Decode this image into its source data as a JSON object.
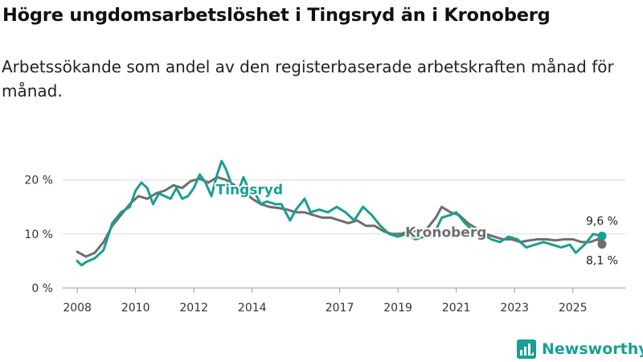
{
  "title": "Högre ungdomsarbetslöshet i Tingsryd än i Kronoberg",
  "subtitle": "Arbetssökande som andel av den registerbaserade arbetskraften månad för månad.",
  "brand": {
    "name": "Newsworthy",
    "color": "#1a9e95"
  },
  "chart_data": {
    "type": "line",
    "ylabel": "",
    "xlabel": "",
    "ylim": [
      0,
      25
    ],
    "xlim": [
      2007.5,
      2026.8
    ],
    "yticks": [
      {
        "value": 0,
        "label": "0 %"
      },
      {
        "value": 10,
        "label": "10 %"
      },
      {
        "value": 20,
        "label": "20 %"
      }
    ],
    "xticks": [
      {
        "value": 2008,
        "label": "2008"
      },
      {
        "value": 2010,
        "label": "2010"
      },
      {
        "value": 2012,
        "label": "2012"
      },
      {
        "value": 2014,
        "label": "2014"
      },
      {
        "value": 2017,
        "label": "2017"
      },
      {
        "value": 2019,
        "label": "2019"
      },
      {
        "value": 2021,
        "label": "2021"
      },
      {
        "value": 2023,
        "label": "2023"
      },
      {
        "value": 2025,
        "label": "2025"
      }
    ],
    "grid": true,
    "series": [
      {
        "name": "Kronoberg",
        "color": "#6e6e6e",
        "end_label": "8,1 %",
        "label_at": 2019.8,
        "points": [
          [
            2008.0,
            6.7
          ],
          [
            2008.3,
            5.8
          ],
          [
            2008.6,
            6.5
          ],
          [
            2008.9,
            8.5
          ],
          [
            2009.2,
            11.5
          ],
          [
            2009.5,
            13.5
          ],
          [
            2009.8,
            15.5
          ],
          [
            2010.1,
            17.0
          ],
          [
            2010.4,
            16.5
          ],
          [
            2010.7,
            17.5
          ],
          [
            2011.0,
            18.0
          ],
          [
            2011.3,
            19.0
          ],
          [
            2011.6,
            18.5
          ],
          [
            2011.9,
            19.8
          ],
          [
            2012.2,
            20.2
          ],
          [
            2012.5,
            19.5
          ],
          [
            2012.8,
            20.5
          ],
          [
            2013.1,
            20.0
          ],
          [
            2013.4,
            19.0
          ],
          [
            2013.7,
            18.0
          ],
          [
            2014.0,
            16.5
          ],
          [
            2014.3,
            15.5
          ],
          [
            2014.6,
            15.0
          ],
          [
            2014.9,
            14.8
          ],
          [
            2015.2,
            14.5
          ],
          [
            2015.5,
            14.0
          ],
          [
            2015.8,
            14.0
          ],
          [
            2016.1,
            13.5
          ],
          [
            2016.4,
            13.0
          ],
          [
            2016.7,
            13.0
          ],
          [
            2017.0,
            12.5
          ],
          [
            2017.3,
            12.0
          ],
          [
            2017.6,
            12.5
          ],
          [
            2017.9,
            11.5
          ],
          [
            2018.2,
            11.5
          ],
          [
            2018.5,
            10.5
          ],
          [
            2018.8,
            10.0
          ],
          [
            2019.1,
            10.0
          ],
          [
            2019.4,
            10.5
          ],
          [
            2019.7,
            10.5
          ],
          [
            2020.0,
            11.0
          ],
          [
            2020.3,
            13.0
          ],
          [
            2020.5,
            15.0
          ],
          [
            2020.8,
            14.0
          ],
          [
            2021.1,
            13.5
          ],
          [
            2021.4,
            12.0
          ],
          [
            2021.7,
            11.0
          ],
          [
            2022.0,
            10.0
          ],
          [
            2022.3,
            9.5
          ],
          [
            2022.6,
            9.0
          ],
          [
            2022.9,
            9.0
          ],
          [
            2023.2,
            8.5
          ],
          [
            2023.5,
            8.8
          ],
          [
            2023.8,
            9.0
          ],
          [
            2024.1,
            9.0
          ],
          [
            2024.4,
            8.8
          ],
          [
            2024.7,
            9.0
          ],
          [
            2025.0,
            9.0
          ],
          [
            2025.3,
            8.5
          ],
          [
            2025.6,
            8.5
          ],
          [
            2025.85,
            9.0
          ],
          [
            2026.0,
            8.1
          ]
        ]
      },
      {
        "name": "Tingsryd",
        "color": "#1a9e95",
        "end_label": "9,6 %",
        "label_at": 2013.5,
        "points": [
          [
            2008.0,
            5.0
          ],
          [
            2008.15,
            4.2
          ],
          [
            2008.3,
            4.8
          ],
          [
            2008.6,
            5.5
          ],
          [
            2008.9,
            7.0
          ],
          [
            2009.2,
            12.0
          ],
          [
            2009.5,
            14.0
          ],
          [
            2009.8,
            15.0
          ],
          [
            2010.0,
            18.0
          ],
          [
            2010.2,
            19.5
          ],
          [
            2010.4,
            18.5
          ],
          [
            2010.6,
            15.5
          ],
          [
            2010.8,
            17.5
          ],
          [
            2011.0,
            17.0
          ],
          [
            2011.2,
            16.5
          ],
          [
            2011.4,
            18.5
          ],
          [
            2011.6,
            16.5
          ],
          [
            2011.8,
            17.0
          ],
          [
            2012.0,
            18.5
          ],
          [
            2012.2,
            21.0
          ],
          [
            2012.4,
            19.5
          ],
          [
            2012.6,
            17.0
          ],
          [
            2012.8,
            21.0
          ],
          [
            2012.95,
            23.5
          ],
          [
            2013.1,
            22.0
          ],
          [
            2013.3,
            19.0
          ],
          [
            2013.5,
            17.5
          ],
          [
            2013.7,
            20.5
          ],
          [
            2013.9,
            18.0
          ],
          [
            2014.1,
            17.5
          ],
          [
            2014.3,
            15.5
          ],
          [
            2014.5,
            16.0
          ],
          [
            2014.8,
            15.5
          ],
          [
            2015.0,
            15.5
          ],
          [
            2015.3,
            12.5
          ],
          [
            2015.5,
            14.5
          ],
          [
            2015.8,
            16.5
          ],
          [
            2016.0,
            14.0
          ],
          [
            2016.3,
            14.5
          ],
          [
            2016.6,
            14.0
          ],
          [
            2016.9,
            15.0
          ],
          [
            2017.2,
            14.0
          ],
          [
            2017.5,
            12.5
          ],
          [
            2017.8,
            15.0
          ],
          [
            2018.1,
            13.5
          ],
          [
            2018.4,
            11.5
          ],
          [
            2018.7,
            10.0
          ],
          [
            2019.0,
            9.5
          ],
          [
            2019.3,
            10.0
          ],
          [
            2019.6,
            9.0
          ],
          [
            2019.9,
            9.5
          ],
          [
            2020.2,
            9.5
          ],
          [
            2020.5,
            13.0
          ],
          [
            2020.8,
            13.5
          ],
          [
            2021.0,
            14.0
          ],
          [
            2021.3,
            12.0
          ],
          [
            2021.6,
            10.5
          ],
          [
            2021.9,
            10.0
          ],
          [
            2022.2,
            9.0
          ],
          [
            2022.5,
            8.5
          ],
          [
            2022.8,
            9.5
          ],
          [
            2023.1,
            9.0
          ],
          [
            2023.4,
            7.5
          ],
          [
            2023.7,
            8.0
          ],
          [
            2024.0,
            8.5
          ],
          [
            2024.3,
            8.0
          ],
          [
            2024.6,
            7.5
          ],
          [
            2024.9,
            8.0
          ],
          [
            2025.1,
            6.5
          ],
          [
            2025.4,
            8.0
          ],
          [
            2025.7,
            10.0
          ],
          [
            2026.0,
            9.6
          ]
        ]
      }
    ]
  }
}
